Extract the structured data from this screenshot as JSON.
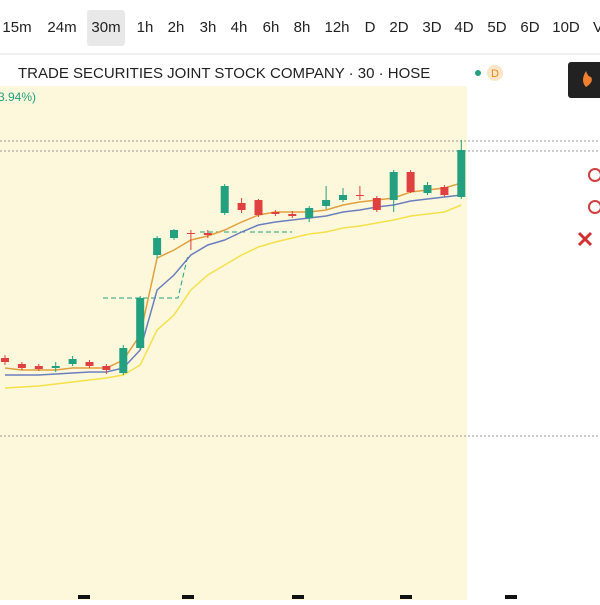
{
  "toolbar": {
    "intervals": [
      "15m",
      "24m",
      "30m",
      "1h",
      "2h",
      "3h",
      "4h",
      "6h",
      "8h",
      "12h",
      "D",
      "2D",
      "3D",
      "4D",
      "5D",
      "6D",
      "10D",
      "V"
    ],
    "selected": 2
  },
  "header": {
    "title": "TRADE SECURITIES JOINT STOCK COMPANY · 30 · HOSE",
    "badge": "D",
    "change": "3.94%)"
  },
  "chart_data": {
    "type": "candlestick",
    "ylim": [
      0,
      300
    ],
    "up_color": "#22a07f",
    "down_color": "#e0403f",
    "candles": [
      {
        "o": 82,
        "h": 85,
        "l": 75,
        "c": 78
      },
      {
        "o": 76,
        "h": 78,
        "l": 70,
        "c": 72
      },
      {
        "o": 74,
        "h": 76,
        "l": 69,
        "c": 71
      },
      {
        "o": 72,
        "h": 78,
        "l": 68,
        "c": 74
      },
      {
        "o": 76,
        "h": 84,
        "l": 74,
        "c": 81
      },
      {
        "o": 78,
        "h": 80,
        "l": 72,
        "c": 74
      },
      {
        "o": 74,
        "h": 76,
        "l": 66,
        "c": 70
      },
      {
        "o": 67,
        "h": 95,
        "l": 65,
        "c": 92
      },
      {
        "o": 92,
        "h": 144,
        "l": 90,
        "c": 142
      },
      {
        "o": 185,
        "h": 204,
        "l": 182,
        "c": 202
      },
      {
        "o": 202,
        "h": 211,
        "l": 200,
        "c": 210
      },
      {
        "o": 207,
        "h": 210,
        "l": 190,
        "c": 206
      },
      {
        "o": 207,
        "h": 210,
        "l": 202,
        "c": 205
      },
      {
        "o": 227,
        "h": 256,
        "l": 225,
        "c": 254
      },
      {
        "o": 237,
        "h": 242,
        "l": 227,
        "c": 230
      },
      {
        "o": 240,
        "h": 241,
        "l": 223,
        "c": 225
      },
      {
        "o": 228,
        "h": 230,
        "l": 224,
        "c": 226
      },
      {
        "o": 226,
        "h": 229,
        "l": 222,
        "c": 224
      },
      {
        "o": 222,
        "h": 234,
        "l": 218,
        "c": 232
      },
      {
        "o": 234,
        "h": 254,
        "l": 231,
        "c": 240
      },
      {
        "o": 240,
        "h": 252,
        "l": 238,
        "c": 245
      },
      {
        "o": 245,
        "h": 254,
        "l": 240,
        "c": 244
      },
      {
        "o": 242,
        "h": 244,
        "l": 228,
        "c": 230
      },
      {
        "o": 240,
        "h": 270,
        "l": 228,
        "c": 268
      },
      {
        "o": 268,
        "h": 270,
        "l": 247,
        "c": 248
      },
      {
        "o": 247,
        "h": 258,
        "l": 245,
        "c": 255
      },
      {
        "o": 253,
        "h": 255,
        "l": 243,
        "c": 245
      },
      {
        "o": 243,
        "h": 300,
        "l": 241,
        "c": 290
      }
    ],
    "series": [
      {
        "color": "#e0a040",
        "values": [
          72,
          70,
          70,
          70,
          72,
          72,
          72,
          80,
          105,
          182,
          190,
          200,
          204,
          210,
          218,
          225,
          228,
          228,
          228,
          230,
          235,
          238,
          240,
          242,
          248,
          250,
          252,
          257
        ]
      },
      {
        "color": "#6b7fc0",
        "values": [
          65,
          65,
          65,
          66,
          67,
          68,
          68,
          72,
          90,
          150,
          165,
          185,
          195,
          200,
          208,
          215,
          218,
          220,
          222,
          224,
          228,
          230,
          233,
          235,
          239,
          241,
          243,
          245
        ]
      },
      {
        "color": "#f5e04a",
        "values": [
          52,
          53,
          54,
          56,
          58,
          60,
          62,
          65,
          75,
          110,
          125,
          150,
          165,
          175,
          185,
          193,
          198,
          202,
          206,
          208,
          212,
          214,
          217,
          220,
          224,
          226,
          228,
          235
        ]
      }
    ]
  }
}
